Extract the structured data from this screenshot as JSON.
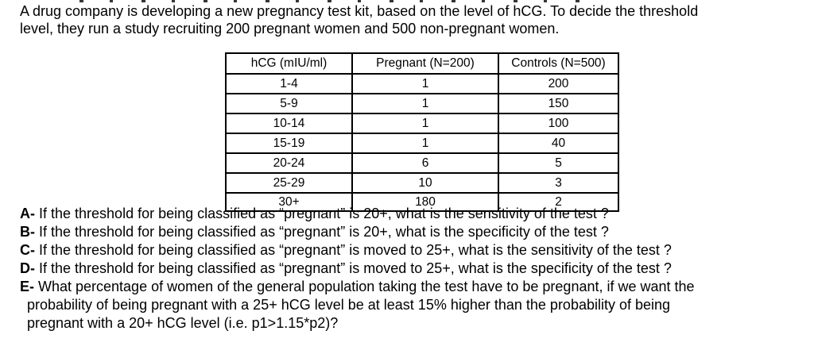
{
  "document": {
    "intro": {
      "lines": [
        "A drug company is developing a new pregnancy test kit, based on the level of hCG. To decide the threshold",
        "level, they run a study recruiting 200 pregnant women and 500 non-pregnant women."
      ]
    },
    "table": {
      "headers": [
        "hCG (mIU/ml)",
        "Pregnant (N=200)",
        "Controls (N=500)"
      ],
      "rows": [
        [
          "1-4",
          "1",
          "200"
        ],
        [
          "5-9",
          "1",
          "150"
        ],
        [
          "10-14",
          "1",
          "100"
        ],
        [
          "15-19",
          "1",
          "40"
        ],
        [
          "20-24",
          "6",
          "5"
        ],
        [
          "25-29",
          "10",
          "3"
        ],
        [
          "30+",
          "180",
          "2"
        ]
      ]
    },
    "questions": [
      {
        "label": "A-",
        "lines": [
          "If the threshold for being classified as “pregnant” is 20+, what is the sensitivity of the test ?"
        ]
      },
      {
        "label": "B-",
        "lines": [
          "If the threshold for being classified as “pregnant” is 20+, what is the specificity of the test ?"
        ]
      },
      {
        "label": "C-",
        "lines": [
          "If the threshold for being classified as “pregnant” is moved to 25+, what is the sensitivity of the test ?"
        ]
      },
      {
        "label": "D-",
        "lines": [
          "If the threshold for being classified as “pregnant” is moved to 25+, what is the specificity of the test ?"
        ]
      },
      {
        "label": "E-",
        "lines": [
          "What percentage of women of the general population taking the test have to be pregnant, if we want the",
          "probability of being pregnant with a 25+ hCG level be at least 15% higher than the probability of being",
          "pregnant with a 20+ hCG level (i.e. p1>1.15*p2)?"
        ]
      }
    ]
  }
}
